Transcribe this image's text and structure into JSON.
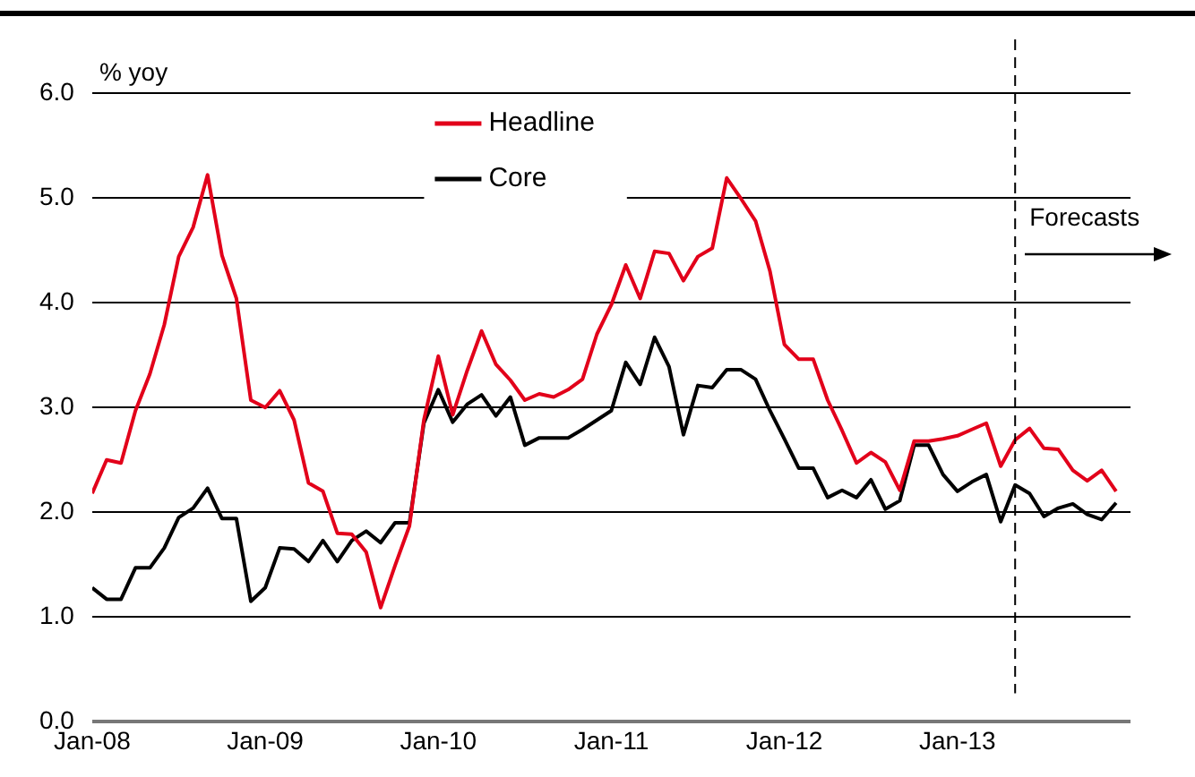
{
  "chart_data": {
    "type": "line",
    "ylabel": "% yoy",
    "x": [
      "2008-01",
      "2008-02",
      "2008-03",
      "2008-04",
      "2008-05",
      "2008-06",
      "2008-07",
      "2008-08",
      "2008-09",
      "2008-10",
      "2008-11",
      "2008-12",
      "2009-01",
      "2009-02",
      "2009-03",
      "2009-04",
      "2009-05",
      "2009-06",
      "2009-07",
      "2009-08",
      "2009-09",
      "2009-10",
      "2009-11",
      "2009-12",
      "2010-01",
      "2010-02",
      "2010-03",
      "2010-04",
      "2010-05",
      "2010-06",
      "2010-07",
      "2010-08",
      "2010-09",
      "2010-10",
      "2010-11",
      "2010-12",
      "2011-01",
      "2011-02",
      "2011-03",
      "2011-04",
      "2011-05",
      "2011-06",
      "2011-07",
      "2011-08",
      "2011-09",
      "2011-10",
      "2011-11",
      "2011-12",
      "2012-01",
      "2012-02",
      "2012-03",
      "2012-04",
      "2012-05",
      "2012-06",
      "2012-07",
      "2012-08",
      "2012-09",
      "2012-10",
      "2012-11",
      "2012-12",
      "2013-01",
      "2013-02",
      "2013-03",
      "2013-04",
      "2013-05",
      "2013-06",
      "2013-07",
      "2013-08",
      "2013-09",
      "2013-10",
      "2013-11",
      "2013-12"
    ],
    "series": [
      {
        "name": "Headline",
        "color": "#e2001a",
        "values": [
          2.18,
          2.5,
          2.47,
          2.97,
          3.32,
          3.79,
          4.44,
          4.72,
          5.22,
          4.45,
          4.04,
          3.07,
          3.0,
          3.16,
          2.88,
          2.28,
          2.2,
          1.8,
          1.79,
          1.62,
          1.09,
          1.49,
          1.87,
          2.88,
          3.49,
          2.93,
          3.35,
          3.73,
          3.41,
          3.26,
          3.07,
          3.13,
          3.1,
          3.17,
          3.27,
          3.7,
          3.98,
          4.36,
          4.04,
          4.49,
          4.47,
          4.21,
          4.44,
          4.52,
          5.19,
          4.99,
          4.78,
          4.3,
          3.6,
          3.46,
          3.46,
          3.07,
          2.78,
          2.47,
          2.57,
          2.48,
          2.21,
          2.68,
          2.68,
          2.7,
          2.73,
          2.79,
          2.85,
          2.44,
          2.69,
          2.8,
          2.61,
          2.6,
          2.4,
          2.3,
          2.4,
          2.2
        ]
      },
      {
        "name": "Core",
        "color": "#000000",
        "values": [
          1.28,
          1.17,
          1.17,
          1.47,
          1.47,
          1.66,
          1.95,
          2.04,
          2.23,
          1.94,
          1.94,
          1.15,
          1.28,
          1.66,
          1.65,
          1.53,
          1.73,
          1.53,
          1.73,
          1.82,
          1.71,
          1.9,
          1.9,
          2.85,
          3.17,
          2.86,
          3.03,
          3.12,
          2.92,
          3.1,
          2.64,
          2.71,
          2.71,
          2.71,
          2.79,
          2.88,
          2.97,
          3.43,
          3.22,
          3.67,
          3.39,
          2.74,
          3.21,
          3.19,
          3.36,
          3.36,
          3.27,
          2.97,
          2.7,
          2.42,
          2.42,
          2.14,
          2.21,
          2.14,
          2.31,
          2.03,
          2.11,
          2.64,
          2.64,
          2.36,
          2.2,
          2.29,
          2.36,
          1.91,
          2.26,
          2.18,
          1.96,
          2.04,
          2.08,
          1.98,
          1.93,
          2.09
        ]
      }
    ],
    "xlim": [
      "2008-01",
      "2014-01"
    ],
    "xticks": [
      {
        "value": "2008-01",
        "label": "Jan-08"
      },
      {
        "value": "2009-01",
        "label": "Jan-09"
      },
      {
        "value": "2010-01",
        "label": "Jan-10"
      },
      {
        "value": "2011-01",
        "label": "Jan-11"
      },
      {
        "value": "2012-01",
        "label": "Jan-12"
      },
      {
        "value": "2013-01",
        "label": "Jan-13"
      }
    ],
    "ylim": [
      0,
      6
    ],
    "yticks": [
      {
        "value": 0,
        "label": "0.0"
      },
      {
        "value": 1,
        "label": "1.0"
      },
      {
        "value": 2,
        "label": "2.0"
      },
      {
        "value": 3,
        "label": "3.0"
      },
      {
        "value": 4,
        "label": "4.0"
      },
      {
        "value": 5,
        "label": "5.0"
      },
      {
        "value": 6,
        "label": "6.0"
      }
    ],
    "ref_lines": [
      {
        "axis": "x",
        "value": "2013-05",
        "label": "Forecasts",
        "color": "#000000",
        "line_style": "dashed"
      }
    ],
    "grid": "y",
    "legend": "top",
    "marker": "none",
    "line_style": "solid"
  }
}
